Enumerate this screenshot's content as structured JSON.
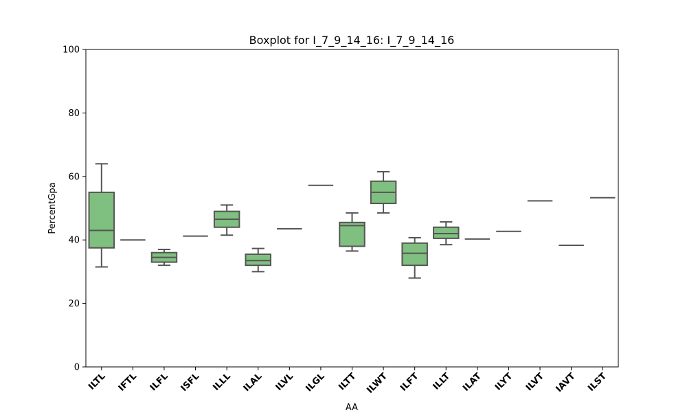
{
  "chart_data": {
    "type": "box",
    "title": "Boxplot for I_7_9_14_16: I_7_9_14_16",
    "xlabel": "AA",
    "ylabel": "PercentGpa",
    "ylim": [
      0,
      100
    ],
    "yticks": [
      0,
      20,
      40,
      60,
      80,
      100
    ],
    "grid": false,
    "colors": {
      "box_fill": "#7fbf7f",
      "box_edge": "#555555",
      "axis": "#000000"
    },
    "categories": [
      "ILTL",
      "IFTL",
      "ILFL",
      "ISFL",
      "ILLL",
      "ILAL",
      "ILVL",
      "ILGL",
      "ILTT",
      "ILWT",
      "ILFT",
      "ILLT",
      "ILAT",
      "ILYT",
      "ILVT",
      "IAVT",
      "ILST"
    ],
    "boxes": [
      {
        "category": "ILTL",
        "whisker_low": 31.5,
        "q1": 37.5,
        "median": 43.0,
        "q3": 55.0,
        "whisker_high": 64.0
      },
      {
        "category": "IFTL",
        "whisker_low": 40.0,
        "q1": 40.0,
        "median": 40.0,
        "q3": 40.0,
        "whisker_high": 40.0
      },
      {
        "category": "ILFL",
        "whisker_low": 32.0,
        "q1": 33.0,
        "median": 34.5,
        "q3": 36.0,
        "whisker_high": 37.0
      },
      {
        "category": "ISFL",
        "whisker_low": 41.2,
        "q1": 41.2,
        "median": 41.2,
        "q3": 41.2,
        "whisker_high": 41.2
      },
      {
        "category": "ILLL",
        "whisker_low": 41.5,
        "q1": 44.0,
        "median": 46.5,
        "q3": 49.0,
        "whisker_high": 51.0
      },
      {
        "category": "ILAL",
        "whisker_low": 30.0,
        "q1": 32.0,
        "median": 33.5,
        "q3": 35.5,
        "whisker_high": 37.3
      },
      {
        "category": "ILVL",
        "whisker_low": 43.5,
        "q1": 43.5,
        "median": 43.5,
        "q3": 43.5,
        "whisker_high": 43.5
      },
      {
        "category": "ILGL",
        "whisker_low": 57.2,
        "q1": 57.2,
        "median": 57.2,
        "q3": 57.2,
        "whisker_high": 57.2
      },
      {
        "category": "ILTT",
        "whisker_low": 36.5,
        "q1": 38.0,
        "median": 44.5,
        "q3": 45.5,
        "whisker_high": 48.5
      },
      {
        "category": "ILWT",
        "whisker_low": 48.5,
        "q1": 51.5,
        "median": 55.0,
        "q3": 58.5,
        "whisker_high": 61.5
      },
      {
        "category": "ILFT",
        "whisker_low": 28.0,
        "q1": 32.0,
        "median": 35.8,
        "q3": 39.0,
        "whisker_high": 40.7
      },
      {
        "category": "ILLT",
        "whisker_low": 38.5,
        "q1": 40.5,
        "median": 42.0,
        "q3": 44.0,
        "whisker_high": 45.7
      },
      {
        "category": "ILAT",
        "whisker_low": 40.3,
        "q1": 40.3,
        "median": 40.3,
        "q3": 40.3,
        "whisker_high": 40.3
      },
      {
        "category": "ILYT",
        "whisker_low": 42.7,
        "q1": 42.7,
        "median": 42.7,
        "q3": 42.7,
        "whisker_high": 42.7
      },
      {
        "category": "ILVT",
        "whisker_low": 52.3,
        "q1": 52.3,
        "median": 52.3,
        "q3": 52.3,
        "whisker_high": 52.3
      },
      {
        "category": "IAVT",
        "whisker_low": 38.3,
        "q1": 38.3,
        "median": 38.3,
        "q3": 38.3,
        "whisker_high": 38.3
      },
      {
        "category": "ILST",
        "whisker_low": 53.3,
        "q1": 53.3,
        "median": 53.3,
        "q3": 53.3,
        "whisker_high": 53.3
      }
    ]
  }
}
